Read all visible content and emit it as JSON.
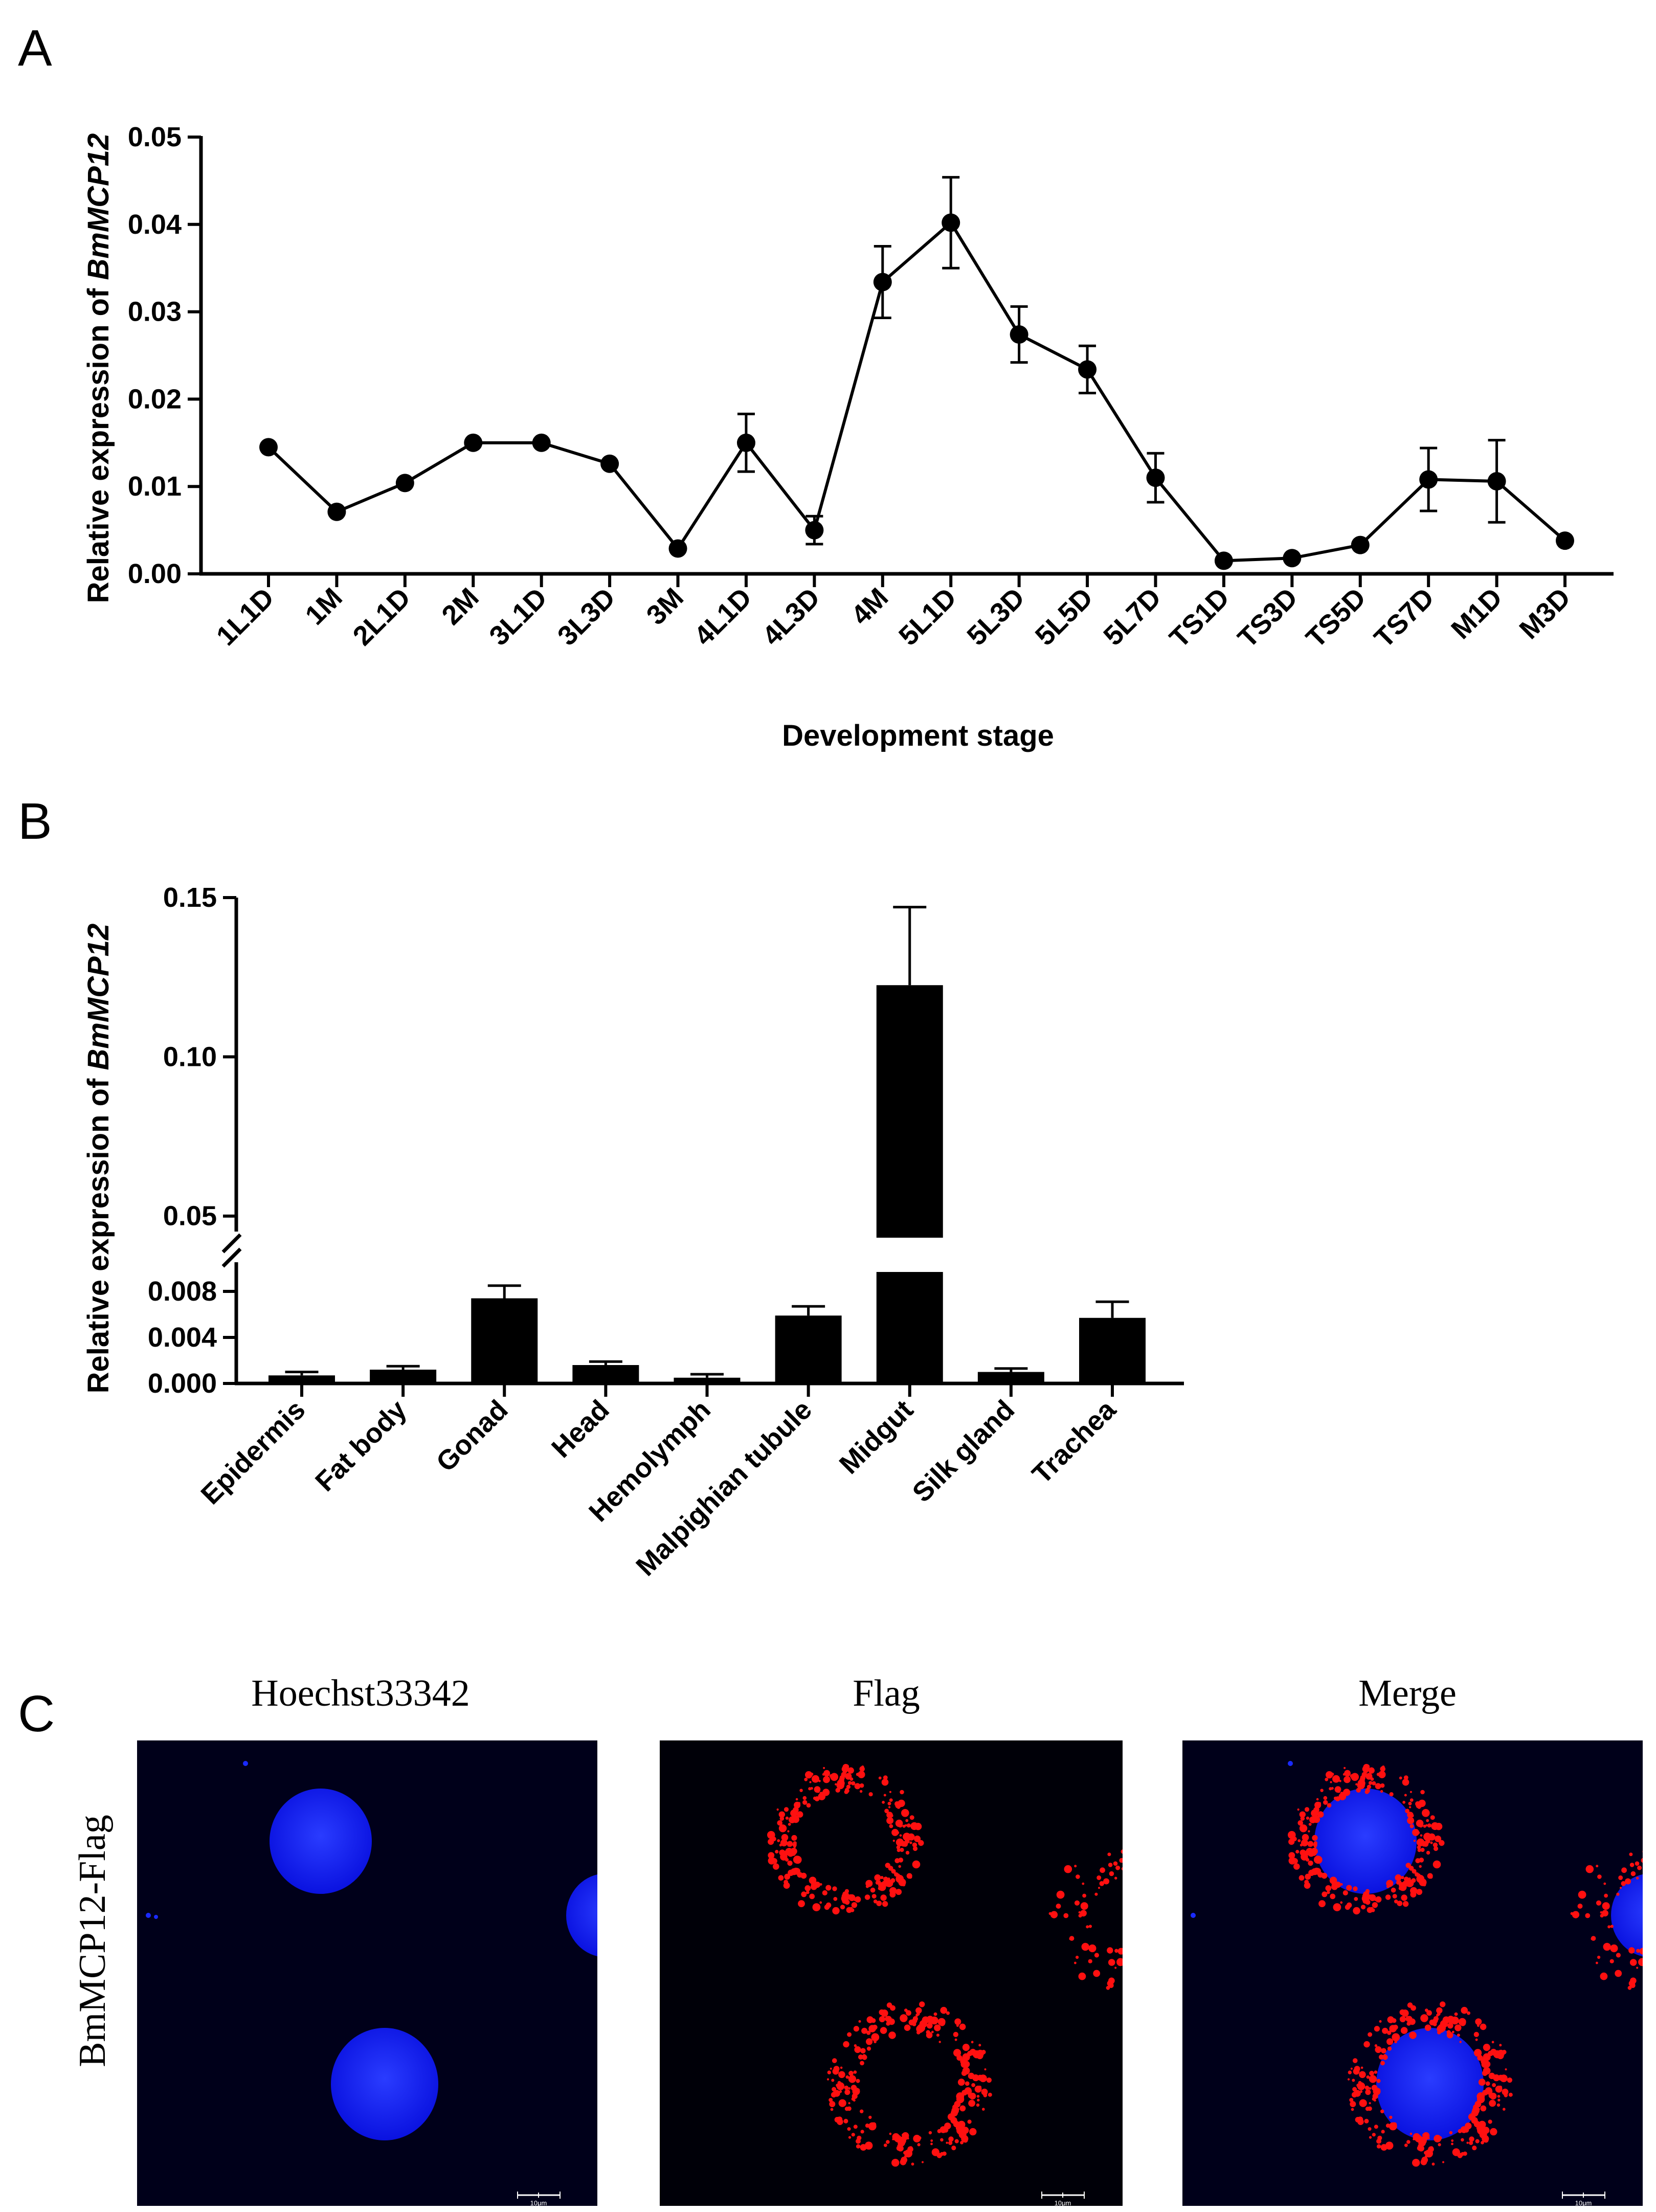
{
  "panels": {
    "a": {
      "letter": "A"
    },
    "b": {
      "letter": "B"
    },
    "c": {
      "letter": "C"
    }
  },
  "chart_data": [
    {
      "panel": "A",
      "type": "line",
      "xlabel": "Development stage",
      "ylabel_prefix": "Relative expression of ",
      "ylabel_gene": "BmMCP12",
      "ylim": [
        0,
        0.05
      ],
      "yticks": [
        "0.00",
        "0.01",
        "0.02",
        "0.03",
        "0.04",
        "0.05"
      ],
      "categories": [
        "1L1D",
        "1M",
        "2L1D",
        "2M",
        "3L1D",
        "3L3D",
        "3M",
        "4L1D",
        "4L3D",
        "4M",
        "5L1D",
        "5L3D",
        "5L5D",
        "5L7D",
        "TS1D",
        "TS3D",
        "TS5D",
        "TS7D",
        "M1D",
        "M3D"
      ],
      "values": [
        0.0145,
        0.0071,
        0.0104,
        0.015,
        0.015,
        0.0126,
        0.0029,
        0.015,
        0.005,
        0.0334,
        0.0402,
        0.0274,
        0.0234,
        0.011,
        0.0015,
        0.0018,
        0.0033,
        0.0108,
        0.0106,
        0.0038
      ],
      "errors": [
        0,
        0,
        0,
        0,
        0,
        0,
        0,
        0.0033,
        0.0016,
        0.0041,
        0.0052,
        0.0032,
        0.0027,
        0.0028,
        0,
        0,
        0,
        0.0036,
        0.0047,
        0
      ]
    },
    {
      "panel": "B",
      "type": "bar",
      "ylabel_prefix": "Relative expression of ",
      "ylabel_gene": "BmMCP12",
      "axis_break": true,
      "lower_ylim": [
        0,
        0.01
      ],
      "upper_ylim": [
        0.04,
        0.15
      ],
      "yticks_lower": [
        "0.000",
        "0.004",
        "0.008"
      ],
      "yticks_upper": [
        "0.05",
        "0.10",
        "0.15"
      ],
      "categories": [
        "Epidermis",
        "Fat body",
        "Gonad",
        "Head",
        "Hemolymph",
        "Malpighian tubule",
        "Midgut",
        "Silk gland",
        "Trachea"
      ],
      "values": [
        0.0007,
        0.0012,
        0.0074,
        0.0016,
        0.0005,
        0.0059,
        0.1225,
        0.001,
        0.0057
      ],
      "errors": [
        0.0003,
        0.0003,
        0.0011,
        0.0003,
        0.0003,
        0.0008,
        0.0245,
        0.0003,
        0.0014
      ]
    }
  ],
  "microscopy": {
    "row_label": "BmMCP12-Flag",
    "columns": [
      "Hoechst33342",
      "Flag",
      "Merge"
    ],
    "scale_bar": "10μm",
    "colors": {
      "nucleus": "#0a14ff",
      "flag": "#ff1010",
      "background": "#00001a"
    }
  }
}
